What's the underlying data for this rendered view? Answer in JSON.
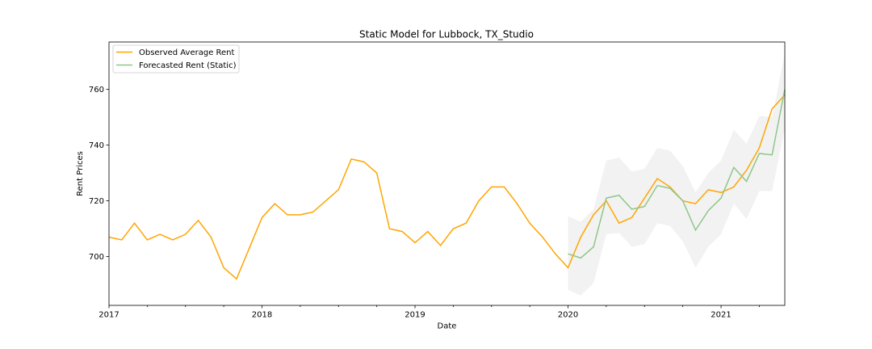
{
  "chart_data": {
    "type": "line",
    "title": "Static Model for Lubbock, TX_Studio",
    "xlabel": "Date",
    "ylabel": "Rent Prices",
    "xlim": [
      "2017-01",
      "2021-06"
    ],
    "ylim": [
      682.5,
      777
    ],
    "x_ticks": [
      "2017",
      "2018",
      "2019",
      "2020",
      "2021"
    ],
    "y_ticks": [
      700,
      720,
      740,
      760
    ],
    "grid": false,
    "legend_position": "top-left",
    "colors": {
      "observed": "#ffa500",
      "forecast": "#8fc68a",
      "interval": "#d3d3d3"
    },
    "series": [
      {
        "name": "Observed Average Rent",
        "x": [
          "2017-01",
          "2017-02",
          "2017-03",
          "2017-04",
          "2017-05",
          "2017-06",
          "2017-07",
          "2017-08",
          "2017-09",
          "2017-10",
          "2017-11",
          "2017-12",
          "2018-01",
          "2018-02",
          "2018-03",
          "2018-04",
          "2018-05",
          "2018-06",
          "2018-07",
          "2018-08",
          "2018-09",
          "2018-10",
          "2018-11",
          "2018-12",
          "2019-01",
          "2019-02",
          "2019-03",
          "2019-04",
          "2019-05",
          "2019-06",
          "2019-07",
          "2019-08",
          "2019-09",
          "2019-10",
          "2019-11",
          "2019-12",
          "2020-01",
          "2020-02",
          "2020-03",
          "2020-04",
          "2020-05",
          "2020-06",
          "2020-07",
          "2020-08",
          "2020-09",
          "2020-10",
          "2020-11",
          "2020-12",
          "2021-01",
          "2021-02",
          "2021-03",
          "2021-04",
          "2021-05",
          "2021-06"
        ],
        "values": [
          707,
          706,
          712,
          706,
          708,
          706,
          708,
          713,
          707,
          696,
          692,
          703,
          714,
          719,
          715,
          715,
          716,
          720,
          724,
          735,
          734,
          730,
          710,
          709,
          705,
          709,
          704,
          710,
          712,
          720,
          725,
          725,
          719,
          712,
          707,
          701,
          696,
          707,
          715,
          720,
          712,
          714,
          721,
          728,
          725,
          720,
          719,
          724,
          723,
          725,
          731,
          739,
          753,
          758
        ]
      },
      {
        "name": "Forecasted Rent (Static)",
        "x": [
          "2020-01",
          "2020-02",
          "2020-03",
          "2020-04",
          "2020-05",
          "2020-06",
          "2020-07",
          "2020-08",
          "2020-09",
          "2020-10",
          "2020-11",
          "2020-12",
          "2021-01",
          "2021-02",
          "2021-03",
          "2021-04",
          "2021-05",
          "2021-06"
        ],
        "values": [
          701,
          699.5,
          703.5,
          721,
          722,
          717,
          718,
          725.5,
          724.5,
          720,
          709.5,
          716.5,
          721,
          732,
          727,
          737,
          736.5,
          760
        ],
        "lower": [
          688,
          686,
          690.5,
          708,
          708.5,
          703.5,
          704.5,
          712,
          711,
          705.5,
          696,
          703.5,
          708,
          719,
          713.5,
          723.5,
          723.5,
          746
        ],
        "upper": [
          714.5,
          712.5,
          717,
          734.5,
          735.5,
          730.5,
          731.5,
          739,
          738,
          732.5,
          723,
          730,
          734.5,
          745.5,
          740.5,
          750.5,
          750,
          773
        ]
      }
    ]
  }
}
